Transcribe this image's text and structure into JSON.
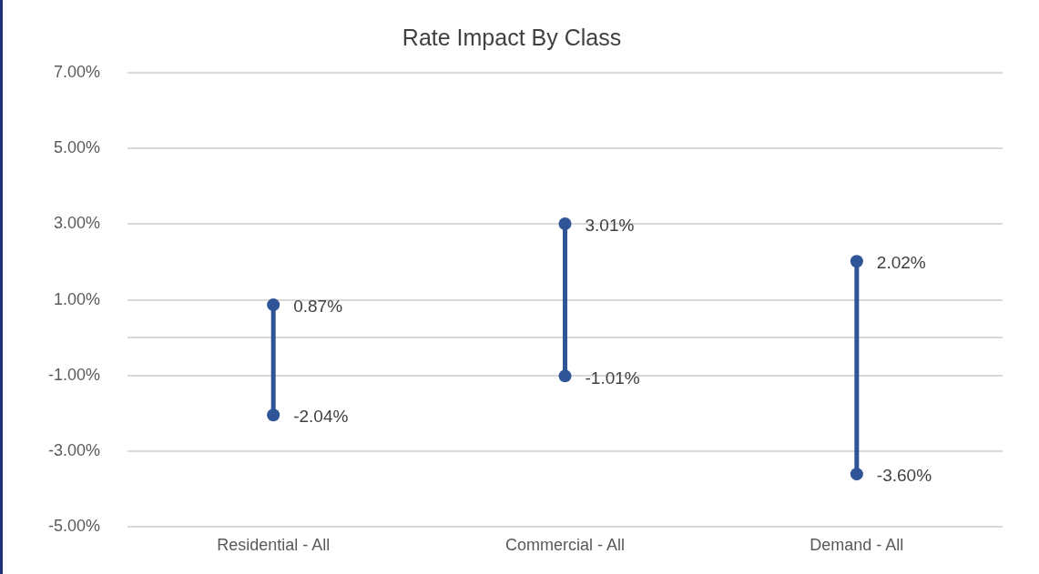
{
  "chart_data": {
    "type": "line",
    "title": "Rate Impact By Class",
    "categories": [
      "Residential - All",
      "Commercial - All",
      "Demand - All"
    ],
    "series": [
      {
        "color": "#2f5597",
        "x": [
          "Residential - All",
          "Residential - All"
        ],
        "values": [
          0.87,
          -2.04
        ],
        "value_labels": [
          "0.87%",
          "-2.04%"
        ]
      },
      {
        "color": "#2f5597",
        "x": [
          "Commercial - All",
          "Commercial - All"
        ],
        "values": [
          3.01,
          -1.01
        ],
        "value_labels": [
          "3.01%",
          "-1.01%"
        ]
      },
      {
        "color": "#2f5597",
        "x": [
          "Demand - All",
          "Demand - All"
        ],
        "values": [
          2.02,
          -3.6
        ],
        "value_labels": [
          "2.02%",
          "-3.60%"
        ]
      }
    ],
    "ylim": [
      -5,
      7
    ],
    "yticks": [
      {
        "value": -5,
        "label": "-5.00%"
      },
      {
        "value": -3,
        "label": "-3.00%"
      },
      {
        "value": -1,
        "label": "-1.00%"
      },
      {
        "value": 0,
        "label": null
      },
      {
        "value": 1,
        "label": "1.00%"
      },
      {
        "value": 3,
        "label": "3.00%"
      },
      {
        "value": 5,
        "label": "5.00%"
      },
      {
        "value": 7,
        "label": "7.00%"
      }
    ],
    "grid": "y",
    "marker": "circle",
    "line_style": "solid",
    "legend": false
  }
}
